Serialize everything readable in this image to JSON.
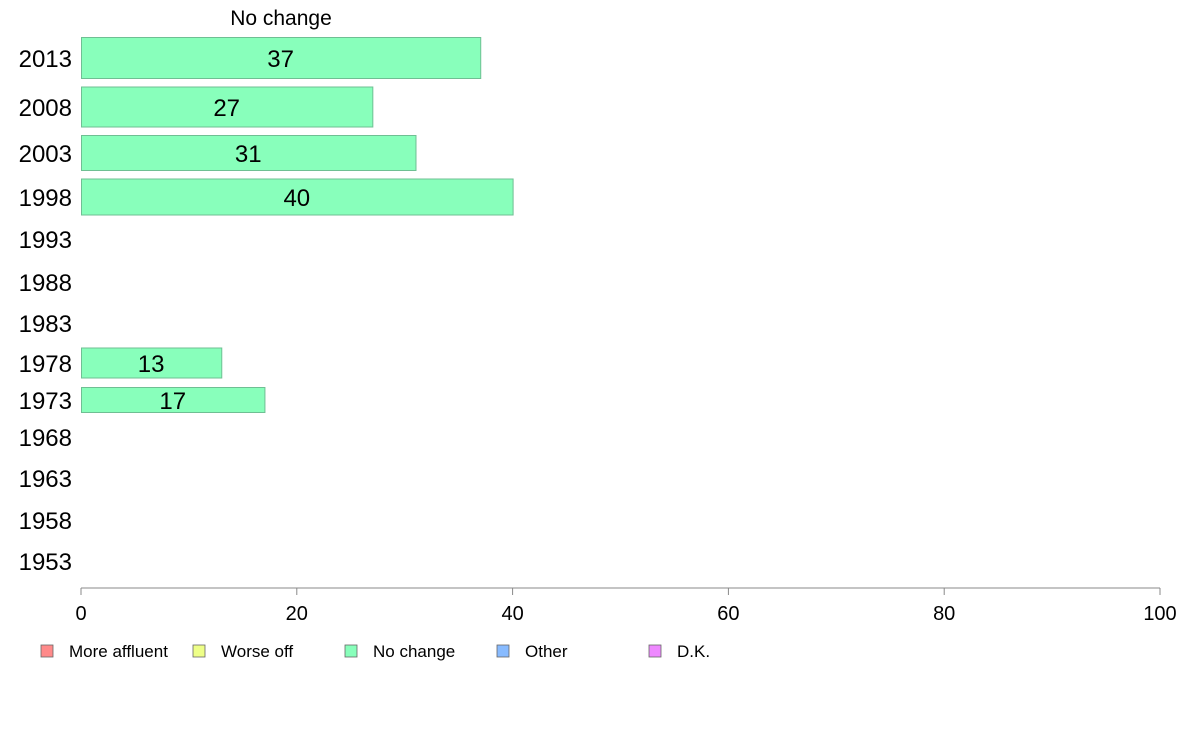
{
  "chart_data": {
    "type": "bar",
    "orientation": "horizontal",
    "title": "No change",
    "categories": [
      "2013",
      "2008",
      "2003",
      "1998",
      "1993",
      "1988",
      "1983",
      "1978",
      "1973",
      "1968",
      "1963",
      "1958",
      "1953"
    ],
    "values": [
      37,
      27,
      31,
      40,
      null,
      null,
      null,
      13,
      17,
      null,
      null,
      null,
      null
    ],
    "series_name": "No change",
    "xlim": [
      0,
      100
    ],
    "xticks": [
      0,
      20,
      40,
      60,
      80,
      100
    ],
    "xlabel": "",
    "ylabel": "",
    "grid": false,
    "legend_position": "bottom",
    "legend": [
      {
        "label": "More affluent",
        "color": "#ff8a8a"
      },
      {
        "label": "Worse off",
        "color": "#eeff88"
      },
      {
        "label": "No change",
        "color": "#88ffbb"
      },
      {
        "label": "Other",
        "color": "#88bbff"
      },
      {
        "label": "D.K.",
        "color": "#ee88ff"
      }
    ],
    "bar_color": "#88ffbb"
  }
}
